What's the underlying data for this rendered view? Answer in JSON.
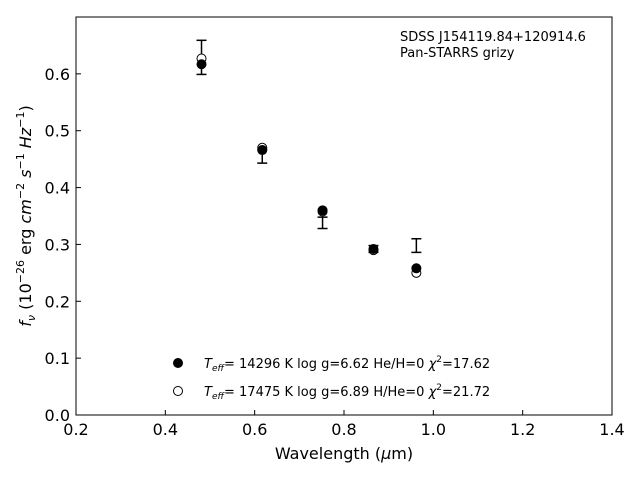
{
  "chart_data": {
    "type": "scatter",
    "xlabel": "Wavelength (μm)",
    "ylabel": "f_ν (10^-26 erg cm^-2 s^-1 Hz^-1)",
    "xlim": [
      0.2,
      1.4
    ],
    "ylim": [
      0.0,
      0.7
    ],
    "xticks": [
      "0.2",
      "0.4",
      "0.6",
      "0.8",
      "1.0",
      "1.2",
      "1.4"
    ],
    "xtick_values": [
      0.2,
      0.4,
      0.6,
      0.8,
      1.0,
      1.2,
      1.4
    ],
    "yticks": [
      "0.0",
      "0.1",
      "0.2",
      "0.3",
      "0.4",
      "0.5",
      "0.6"
    ],
    "ytick_values": [
      0.0,
      0.1,
      0.2,
      0.3,
      0.4,
      0.5,
      0.6
    ],
    "grid": false,
    "legend_position": "bottom-center",
    "annotations": [
      "SDSS J154119.84+120914.6",
      "Pan-STARRS grizy"
    ],
    "observed": {
      "x": [
        0.481,
        0.617,
        0.752,
        0.866,
        0.962
      ],
      "y": [
        0.629,
        0.455,
        0.338,
        0.292,
        0.298
      ],
      "yerr": [
        0.03,
        0.012,
        0.01,
        0.006,
        0.012
      ]
    },
    "series": [
      {
        "name": "Teff= 14296 K log g=6.62 He/H=0 χ2=17.62",
        "marker": "filled-circle",
        "x": [
          0.481,
          0.617,
          0.752,
          0.866,
          0.962
        ],
        "y": [
          0.617,
          0.466,
          0.36,
          0.292,
          0.258
        ]
      },
      {
        "name": "Teff= 17475 K log g=6.89 H/He=0 χ2=21.72",
        "marker": "open-circle",
        "x": [
          0.481,
          0.617,
          0.752,
          0.866,
          0.962
        ],
        "y": [
          0.627,
          0.47,
          0.358,
          0.29,
          0.25
        ]
      }
    ],
    "legend": [
      {
        "teff_label": "T",
        "teff_sub": "eff",
        "teff_value": "= 14296 K  log g=6.62  He/H=0  ",
        "chi_label": "χ",
        "chi_sup": "2",
        "chi_value": "=17.62"
      },
      {
        "teff_label": "T",
        "teff_sub": "eff",
        "teff_value": "= 17475 K  log g=6.89  H/He=0  ",
        "chi_label": "χ",
        "chi_sup": "2",
        "chi_value": "=21.72"
      }
    ],
    "axis_text": {
      "x_main": "Wavelength (",
      "x_mu": "μ",
      "x_unit": "m)",
      "y_f": "f",
      "y_nu": "ν",
      "y_open": " (10",
      "y_exp": "−26",
      "y_erg": " erg ",
      "y_cm": "cm",
      "y_cm_exp": "−2",
      "y_s": " s",
      "y_s_exp": "−1",
      "y_hz": " Hz",
      "y_hz_exp": "−1",
      "y_close": ")"
    }
  }
}
